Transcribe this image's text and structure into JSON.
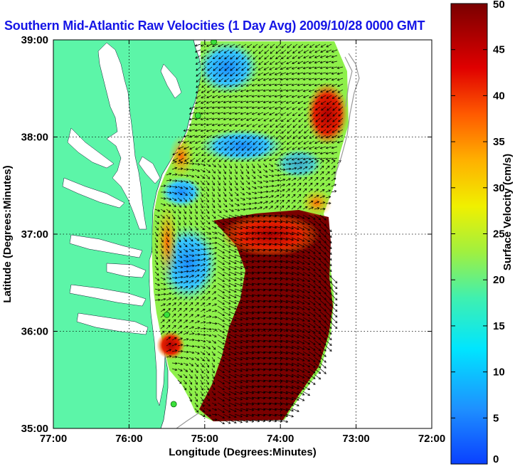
{
  "title": "Southern Mid-Atlantic Raw Velocities (1 Day Avg) 2009/10/28 0000 GMT",
  "axes": {
    "xlabel": "Longitude (Degrees:Minutes)",
    "ylabel": "Latitude (Degrees:Minutes)",
    "xticks": [
      "77:00",
      "76:00",
      "75:00",
      "74:00",
      "73:00",
      "72:00"
    ],
    "yticks": [
      "39:00",
      "38:00",
      "37:00",
      "36:00",
      "35:00"
    ],
    "xlim": [
      -77,
      -72
    ],
    "ylim": [
      35,
      39
    ],
    "grid": "dotted"
  },
  "colorbar": {
    "label": "Surface Velocity (cm/s)",
    "ticks": [
      "0",
      "5",
      "10",
      "15",
      "20",
      "25",
      "30",
      "35",
      "40",
      "45",
      "50"
    ],
    "range": [
      0,
      50
    ],
    "colormap": "jet"
  },
  "colors": {
    "land": "#5cf5a8",
    "water_inland": "#ffffff",
    "title": "#1515e6",
    "station": "#3be03b"
  },
  "stations": [
    {
      "lon": -74.88,
      "lat": 38.98
    },
    {
      "lon": -75.09,
      "lat": 38.22
    },
    {
      "lon": -75.5,
      "lat": 36.17
    },
    {
      "lon": -75.41,
      "lat": 35.25
    }
  ]
}
